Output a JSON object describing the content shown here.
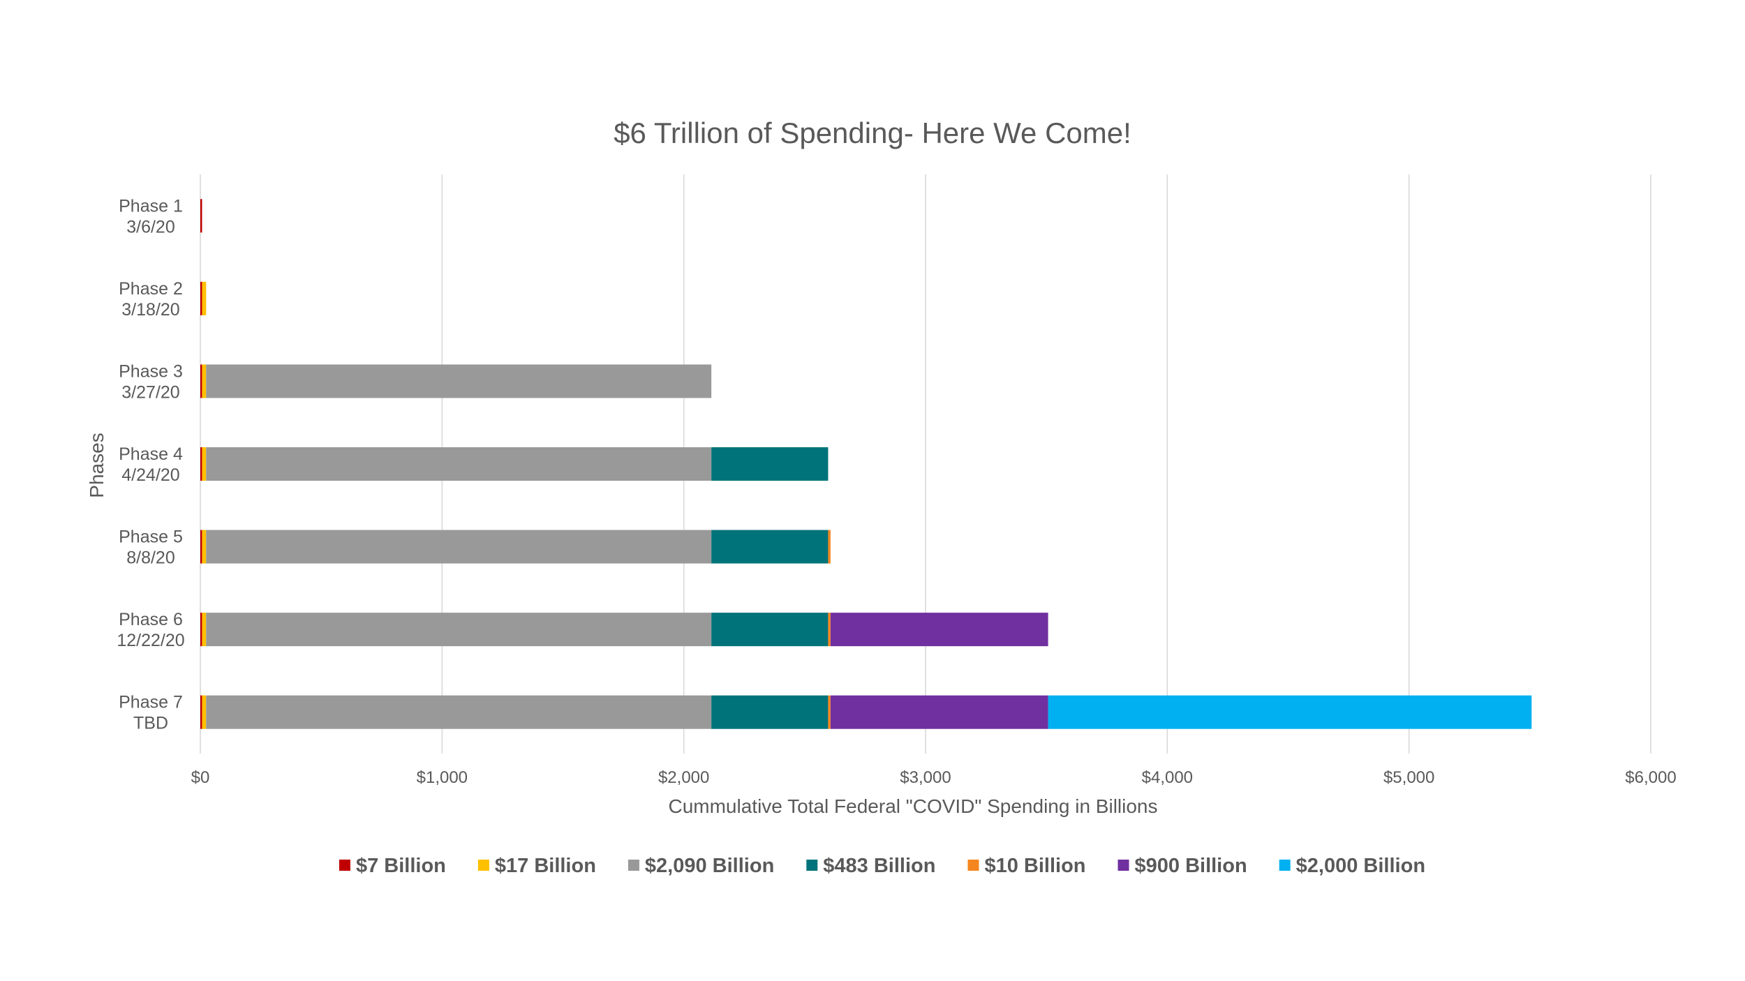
{
  "chart_data": {
    "type": "bar",
    "orientation": "horizontal",
    "stacked": true,
    "title": "$6 Trillion of Spending- Here We Come!",
    "xlabel": "Cummulative Total Federal \"COVID\" Spending in Billions",
    "ylabel": "Phases",
    "xlim": [
      0,
      6000
    ],
    "x_ticks": [
      0,
      1000,
      2000,
      3000,
      4000,
      5000,
      6000
    ],
    "x_tick_labels": [
      "$0",
      "$1,000",
      "$2,000",
      "$3,000",
      "$4,000",
      "$5,000",
      "$6,000"
    ],
    "grid": "vertical",
    "legend_position": "bottom",
    "categories": [
      [
        "Phase 1",
        "3/6/20"
      ],
      [
        "Phase 2",
        "3/18/20"
      ],
      [
        "Phase 3",
        "3/27/20"
      ],
      [
        "Phase 4",
        "4/24/20"
      ],
      [
        "Phase 5",
        "8/8/20"
      ],
      [
        "Phase 6",
        "12/22/20"
      ],
      [
        "Phase 7",
        "TBD"
      ]
    ],
    "series": [
      {
        "name": "$7 Billion",
        "color": "#c00000",
        "values": [
          7,
          7,
          7,
          7,
          7,
          7,
          7
        ]
      },
      {
        "name": "$17 Billion",
        "color": "#ffc000",
        "values": [
          0,
          17,
          17,
          17,
          17,
          17,
          17
        ]
      },
      {
        "name": "$2,090 Billion",
        "color": "#999999",
        "values": [
          0,
          0,
          2090,
          2090,
          2090,
          2090,
          2090
        ]
      },
      {
        "name": "$483 Billion",
        "color": "#00737a",
        "values": [
          0,
          0,
          0,
          483,
          483,
          483,
          483
        ]
      },
      {
        "name": "$10 Billion",
        "color": "#f5861f",
        "values": [
          0,
          0,
          0,
          0,
          10,
          10,
          10
        ]
      },
      {
        "name": "$900 Billion",
        "color": "#7030a0",
        "values": [
          0,
          0,
          0,
          0,
          0,
          900,
          900
        ]
      },
      {
        "name": "$2,000 Billion",
        "color": "#00b0f0",
        "values": [
          0,
          0,
          0,
          0,
          0,
          0,
          2000
        ]
      }
    ]
  }
}
